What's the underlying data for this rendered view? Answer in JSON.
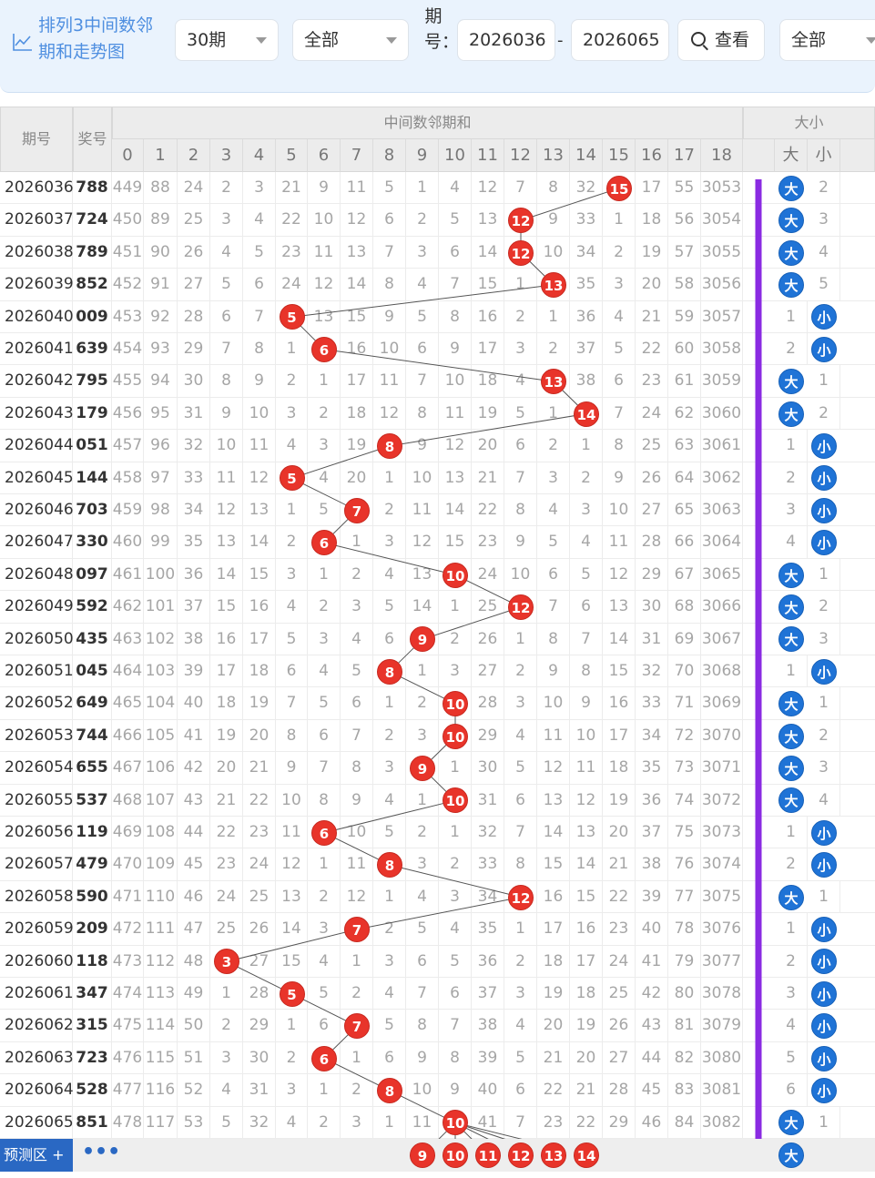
{
  "header": {
    "title_line1": "排列3中间数邻",
    "title_line2": "期和走势图",
    "period_select": "30期",
    "filter_select": "全部",
    "issue_label": "期号：",
    "issue_from": "2026036",
    "issue_to": "2026065",
    "search_label": "查看",
    "filter2_select": "全部",
    "dash": "-"
  },
  "table": {
    "col_period": "期号",
    "col_prize": "奖号",
    "group_sum": "中间数邻期和",
    "group_size": "大小",
    "big_label": "大",
    "small_label": "小",
    "num_headers": [
      "0",
      "1",
      "2",
      "3",
      "4",
      "5",
      "6",
      "7",
      "8",
      "9",
      "10",
      "11",
      "12",
      "13",
      "14",
      "15",
      "16",
      "17",
      "18"
    ],
    "rows": [
      {
        "p": "2026036",
        "w": "788",
        "v": [
          "449",
          "88",
          "24",
          "2",
          "3",
          "21",
          "9",
          "11",
          "5",
          "1",
          "4",
          "12",
          "7",
          "8",
          "32",
          "15",
          "17",
          "55",
          "3053"
        ],
        "h": 15,
        "s": "big",
        "n": "2"
      },
      {
        "p": "2026037",
        "w": "724",
        "v": [
          "450",
          "89",
          "25",
          "3",
          "4",
          "22",
          "10",
          "12",
          "6",
          "2",
          "5",
          "13",
          "12",
          "9",
          "33",
          "1",
          "18",
          "56",
          "3054"
        ],
        "h": 12,
        "s": "big",
        "n": "3"
      },
      {
        "p": "2026038",
        "w": "789",
        "v": [
          "451",
          "90",
          "26",
          "4",
          "5",
          "23",
          "11",
          "13",
          "7",
          "3",
          "6",
          "14",
          "12",
          "10",
          "34",
          "2",
          "19",
          "57",
          "3055"
        ],
        "h": 12,
        "s": "big",
        "n": "4"
      },
      {
        "p": "2026039",
        "w": "852",
        "v": [
          "452",
          "91",
          "27",
          "5",
          "6",
          "24",
          "12",
          "14",
          "8",
          "4",
          "7",
          "15",
          "1",
          "13",
          "35",
          "3",
          "20",
          "58",
          "3056"
        ],
        "h": 13,
        "s": "big",
        "n": "5"
      },
      {
        "p": "2026040",
        "w": "009",
        "v": [
          "453",
          "92",
          "28",
          "6",
          "7",
          "5",
          "13",
          "15",
          "9",
          "5",
          "8",
          "16",
          "2",
          "1",
          "36",
          "4",
          "21",
          "59",
          "3057"
        ],
        "h": 5,
        "s": "small",
        "n": "1"
      },
      {
        "p": "2026041",
        "w": "639",
        "v": [
          "454",
          "93",
          "29",
          "7",
          "8",
          "1",
          "6",
          "16",
          "10",
          "6",
          "9",
          "17",
          "3",
          "2",
          "37",
          "5",
          "22",
          "60",
          "3058"
        ],
        "h": 6,
        "s": "small",
        "n": "2"
      },
      {
        "p": "2026042",
        "w": "795",
        "v": [
          "455",
          "94",
          "30",
          "8",
          "9",
          "2",
          "1",
          "17",
          "11",
          "7",
          "10",
          "18",
          "4",
          "13",
          "38",
          "6",
          "23",
          "61",
          "3059"
        ],
        "h": 13,
        "s": "big",
        "n": "1"
      },
      {
        "p": "2026043",
        "w": "179",
        "v": [
          "456",
          "95",
          "31",
          "9",
          "10",
          "3",
          "2",
          "18",
          "12",
          "8",
          "11",
          "19",
          "5",
          "1",
          "14",
          "7",
          "24",
          "62",
          "3060"
        ],
        "h": 14,
        "s": "big",
        "n": "2"
      },
      {
        "p": "2026044",
        "w": "051",
        "v": [
          "457",
          "96",
          "32",
          "10",
          "11",
          "4",
          "3",
          "19",
          "8",
          "9",
          "12",
          "20",
          "6",
          "2",
          "1",
          "8",
          "25",
          "63",
          "3061"
        ],
        "h": 8,
        "s": "small",
        "n": "1"
      },
      {
        "p": "2026045",
        "w": "144",
        "v": [
          "458",
          "97",
          "33",
          "11",
          "12",
          "5",
          "4",
          "20",
          "1",
          "10",
          "13",
          "21",
          "7",
          "3",
          "2",
          "9",
          "26",
          "64",
          "3062"
        ],
        "h": 5,
        "s": "small",
        "n": "2"
      },
      {
        "p": "2026046",
        "w": "703",
        "v": [
          "459",
          "98",
          "34",
          "12",
          "13",
          "1",
          "5",
          "7",
          "2",
          "11",
          "14",
          "22",
          "8",
          "4",
          "3",
          "10",
          "27",
          "65",
          "3063"
        ],
        "h": 7,
        "s": "small",
        "n": "3"
      },
      {
        "p": "2026047",
        "w": "330",
        "v": [
          "460",
          "99",
          "35",
          "13",
          "14",
          "2",
          "6",
          "1",
          "3",
          "12",
          "15",
          "23",
          "9",
          "5",
          "4",
          "11",
          "28",
          "66",
          "3064"
        ],
        "h": 6,
        "s": "small",
        "n": "4"
      },
      {
        "p": "2026048",
        "w": "097",
        "v": [
          "461",
          "100",
          "36",
          "14",
          "15",
          "3",
          "1",
          "2",
          "4",
          "13",
          "10",
          "24",
          "10",
          "6",
          "5",
          "12",
          "29",
          "67",
          "3065"
        ],
        "h": 10,
        "s": "big",
        "n": "1"
      },
      {
        "p": "2026049",
        "w": "592",
        "v": [
          "462",
          "101",
          "37",
          "15",
          "16",
          "4",
          "2",
          "3",
          "5",
          "14",
          "1",
          "25",
          "12",
          "7",
          "6",
          "13",
          "30",
          "68",
          "3066"
        ],
        "h": 12,
        "s": "big",
        "n": "2"
      },
      {
        "p": "2026050",
        "w": "435",
        "v": [
          "463",
          "102",
          "38",
          "16",
          "17",
          "5",
          "3",
          "4",
          "6",
          "9",
          "2",
          "26",
          "1",
          "8",
          "7",
          "14",
          "31",
          "69",
          "3067"
        ],
        "h": 9,
        "s": "big",
        "n": "3"
      },
      {
        "p": "2026051",
        "w": "045",
        "v": [
          "464",
          "103",
          "39",
          "17",
          "18",
          "6",
          "4",
          "5",
          "8",
          "1",
          "3",
          "27",
          "2",
          "9",
          "8",
          "15",
          "32",
          "70",
          "3068"
        ],
        "h": 8,
        "s": "small",
        "n": "1"
      },
      {
        "p": "2026052",
        "w": "649",
        "v": [
          "465",
          "104",
          "40",
          "18",
          "19",
          "7",
          "5",
          "6",
          "1",
          "2",
          "10",
          "28",
          "3",
          "10",
          "9",
          "16",
          "33",
          "71",
          "3069"
        ],
        "h": 10,
        "s": "big",
        "n": "1"
      },
      {
        "p": "2026053",
        "w": "744",
        "v": [
          "466",
          "105",
          "41",
          "19",
          "20",
          "8",
          "6",
          "7",
          "2",
          "3",
          "10",
          "29",
          "4",
          "11",
          "10",
          "17",
          "34",
          "72",
          "3070"
        ],
        "h": 10,
        "s": "big",
        "n": "2"
      },
      {
        "p": "2026054",
        "w": "655",
        "v": [
          "467",
          "106",
          "42",
          "20",
          "21",
          "9",
          "7",
          "8",
          "3",
          "9",
          "1",
          "30",
          "5",
          "12",
          "11",
          "18",
          "35",
          "73",
          "3071"
        ],
        "h": 9,
        "s": "big",
        "n": "3"
      },
      {
        "p": "2026055",
        "w": "537",
        "v": [
          "468",
          "107",
          "43",
          "21",
          "22",
          "10",
          "8",
          "9",
          "4",
          "1",
          "10",
          "31",
          "6",
          "13",
          "12",
          "19",
          "36",
          "74",
          "3072"
        ],
        "h": 10,
        "s": "big",
        "n": "4"
      },
      {
        "p": "2026056",
        "w": "119",
        "v": [
          "469",
          "108",
          "44",
          "22",
          "23",
          "11",
          "6",
          "10",
          "5",
          "2",
          "1",
          "32",
          "7",
          "14",
          "13",
          "20",
          "37",
          "75",
          "3073"
        ],
        "h": 6,
        "s": "small",
        "n": "1"
      },
      {
        "p": "2026057",
        "w": "479",
        "v": [
          "470",
          "109",
          "45",
          "23",
          "24",
          "12",
          "1",
          "11",
          "8",
          "3",
          "2",
          "33",
          "8",
          "15",
          "14",
          "21",
          "38",
          "76",
          "3074"
        ],
        "h": 8,
        "s": "small",
        "n": "2"
      },
      {
        "p": "2026058",
        "w": "590",
        "v": [
          "471",
          "110",
          "46",
          "24",
          "25",
          "13",
          "2",
          "12",
          "1",
          "4",
          "3",
          "34",
          "12",
          "16",
          "15",
          "22",
          "39",
          "77",
          "3075"
        ],
        "h": 12,
        "s": "big",
        "n": "1"
      },
      {
        "p": "2026059",
        "w": "209",
        "v": [
          "472",
          "111",
          "47",
          "25",
          "26",
          "14",
          "3",
          "7",
          "2",
          "5",
          "4",
          "35",
          "1",
          "17",
          "16",
          "23",
          "40",
          "78",
          "3076"
        ],
        "h": 7,
        "s": "small",
        "n": "1"
      },
      {
        "p": "2026060",
        "w": "118",
        "v": [
          "473",
          "112",
          "48",
          "3",
          "27",
          "15",
          "4",
          "1",
          "3",
          "6",
          "5",
          "36",
          "2",
          "18",
          "17",
          "24",
          "41",
          "79",
          "3077"
        ],
        "h": 3,
        "s": "small",
        "n": "2"
      },
      {
        "p": "2026061",
        "w": "347",
        "v": [
          "474",
          "113",
          "49",
          "1",
          "28",
          "5",
          "5",
          "2",
          "4",
          "7",
          "6",
          "37",
          "3",
          "19",
          "18",
          "25",
          "42",
          "80",
          "3078"
        ],
        "h": 5,
        "s": "small",
        "n": "3"
      },
      {
        "p": "2026062",
        "w": "315",
        "v": [
          "475",
          "114",
          "50",
          "2",
          "29",
          "1",
          "6",
          "7",
          "5",
          "8",
          "7",
          "38",
          "4",
          "20",
          "19",
          "26",
          "43",
          "81",
          "3079"
        ],
        "h": 7,
        "s": "small",
        "n": "4"
      },
      {
        "p": "2026063",
        "w": "723",
        "v": [
          "476",
          "115",
          "51",
          "3",
          "30",
          "2",
          "6",
          "1",
          "6",
          "9",
          "8",
          "39",
          "5",
          "21",
          "20",
          "27",
          "44",
          "82",
          "3080"
        ],
        "h": 6,
        "s": "small",
        "n": "5"
      },
      {
        "p": "2026064",
        "w": "528",
        "v": [
          "477",
          "116",
          "52",
          "4",
          "31",
          "3",
          "1",
          "2",
          "8",
          "10",
          "9",
          "40",
          "6",
          "22",
          "21",
          "28",
          "45",
          "83",
          "3081"
        ],
        "h": 8,
        "s": "small",
        "n": "6"
      },
      {
        "p": "2026065",
        "w": "851",
        "v": [
          "478",
          "117",
          "53",
          "5",
          "32",
          "4",
          "2",
          "3",
          "1",
          "11",
          "10",
          "41",
          "7",
          "23",
          "22",
          "29",
          "46",
          "84",
          "3082"
        ],
        "h": 10,
        "s": "big",
        "n": "1"
      }
    ],
    "predict_label": "预测区",
    "predict_plus": "+",
    "predict_more": "•••",
    "predict_balls": [
      "9",
      "10",
      "11",
      "12",
      "13",
      "14"
    ],
    "predict_size": "大"
  },
  "colors": {
    "hit": "#e8342a",
    "big": "#1f73d6",
    "small": "#1f73d6",
    "arrow": "#8a2be2",
    "accent": "#4f8fe0"
  }
}
